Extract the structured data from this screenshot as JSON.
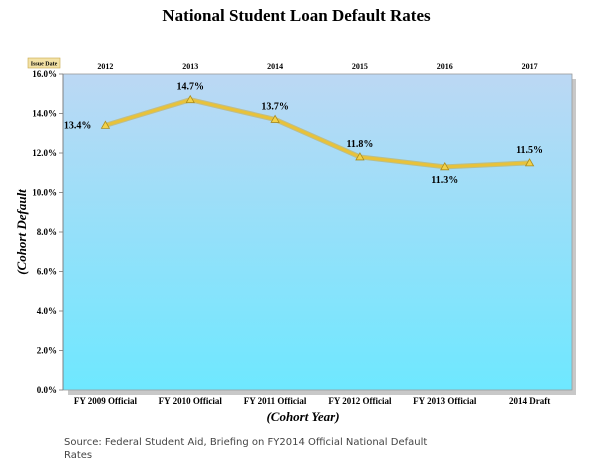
{
  "chart_data": {
    "type": "line",
    "title": "National Student Loan Default Rates",
    "xlabel": "(Cohort Year)",
    "ylabel": "(Cohort Default",
    "categories": [
      "FY 2009 Official",
      "FY 2010 Official",
      "FY 2011 Official",
      "FY 2012 Official",
      "FY 2013 Official",
      "2014 Draft"
    ],
    "issue_date_label": "Issue Date",
    "issue_dates": [
      "2012",
      "2013",
      "2014",
      "2015",
      "2016",
      "2017"
    ],
    "series": [
      {
        "values": [
          13.4,
          14.7,
          13.7,
          11.8,
          11.3,
          11.5
        ],
        "labels": [
          "13.4%",
          "14.7%",
          "13.7%",
          "11.8%",
          "11.3%",
          "11.5%"
        ]
      }
    ],
    "ylim": [
      0,
      16
    ],
    "yticks": [
      "0.0%",
      "2.0%",
      "4.0%",
      "6.0%",
      "8.0%",
      "10.0%",
      "12.0%",
      "14.0%",
      "16.0%"
    ],
    "colors": {
      "line": "#e8c23a",
      "marker": "#f2d24a",
      "bg_top": "#bcd8f4",
      "bg_bottom": "#6ee8ff"
    }
  },
  "source_note": "Source: Federal Student Aid, Briefing on FY2014 Official National Default Rates"
}
